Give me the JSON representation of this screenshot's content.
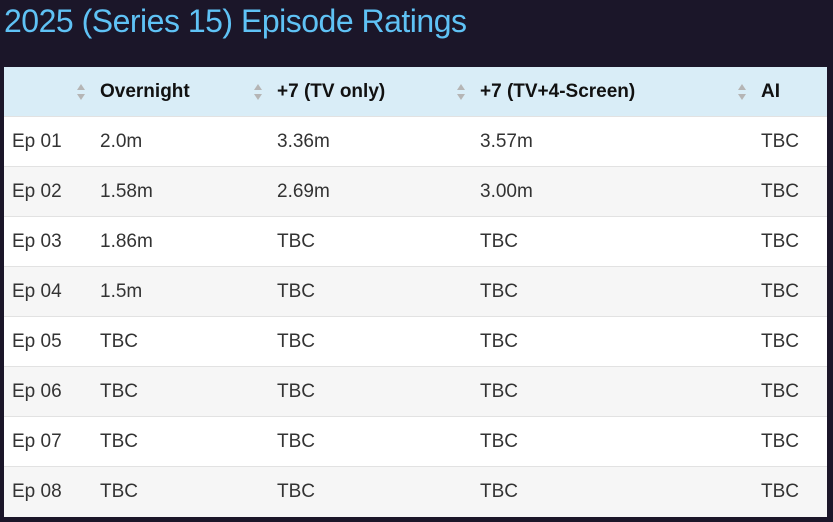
{
  "page": {
    "title": "2025 (Series 15) Episode Ratings"
  },
  "table": {
    "columns": [
      {
        "label": ""
      },
      {
        "label": "Overnight"
      },
      {
        "label": "+7 (TV only)"
      },
      {
        "label": "+7 (TV+4-Screen)"
      },
      {
        "label": "AI"
      }
    ],
    "rows": [
      {
        "episode": "Ep 01",
        "overnight": "2.0m",
        "tv_only": "3.36m",
        "tv_4screen": "3.57m",
        "ai": "TBC"
      },
      {
        "episode": "Ep 02",
        "overnight": "1.58m",
        "tv_only": "2.69m",
        "tv_4screen": "3.00m",
        "ai": "TBC"
      },
      {
        "episode": "Ep 03",
        "overnight": "1.86m",
        "tv_only": "TBC",
        "tv_4screen": "TBC",
        "ai": "TBC"
      },
      {
        "episode": "Ep 04",
        "overnight": "1.5m",
        "tv_only": "TBC",
        "tv_4screen": "TBC",
        "ai": "TBC"
      },
      {
        "episode": "Ep 05",
        "overnight": "TBC",
        "tv_only": "TBC",
        "tv_4screen": "TBC",
        "ai": "TBC"
      },
      {
        "episode": "Ep 06",
        "overnight": "TBC",
        "tv_only": "TBC",
        "tv_4screen": "TBC",
        "ai": "TBC"
      },
      {
        "episode": "Ep 07",
        "overnight": "TBC",
        "tv_only": "TBC",
        "tv_4screen": "TBC",
        "ai": "TBC"
      },
      {
        "episode": "Ep 08",
        "overnight": "TBC",
        "tv_only": "TBC",
        "tv_4screen": "TBC",
        "ai": "TBC"
      }
    ]
  },
  "icons": {
    "sort": "sort-icon"
  },
  "colors": {
    "page_background": "#1b1629",
    "title": "#5fc2f5",
    "header_background": "#d9edf7",
    "row_alt_background": "#f6f6f6"
  }
}
